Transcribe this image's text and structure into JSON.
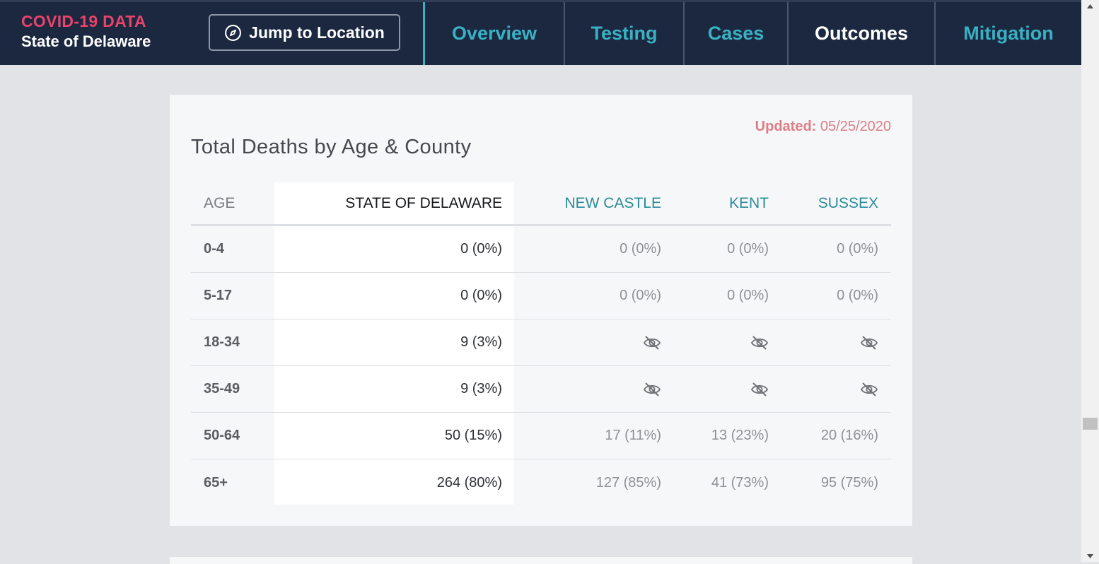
{
  "header": {
    "brand_line1": "COVID-19 DATA",
    "brand_line2": "State of Delaware",
    "jump_label": "Jump to Location",
    "jump_icon": "compass-icon",
    "tabs": [
      {
        "label": "Overview",
        "active": false
      },
      {
        "label": "Testing",
        "active": false
      },
      {
        "label": "Cases",
        "active": false
      },
      {
        "label": "Outcomes",
        "active": true
      },
      {
        "label": "Mitigation",
        "active": false
      }
    ]
  },
  "card": {
    "updated_label": "Updated:",
    "updated_date": "05/25/2020",
    "title": "Total Deaths by Age & County",
    "columns": [
      "AGE",
      "STATE OF DELAWARE",
      "NEW CASTLE",
      "KENT",
      "SUSSEX"
    ],
    "rows": [
      {
        "age": "0-4",
        "state": "0 (0%)",
        "new_castle": "0 (0%)",
        "kent": "0 (0%)",
        "sussex": "0 (0%)"
      },
      {
        "age": "5-17",
        "state": "0 (0%)",
        "new_castle": "0 (0%)",
        "kent": "0 (0%)",
        "sussex": "0 (0%)"
      },
      {
        "age": "18-34",
        "state": "9 (3%)",
        "new_castle": null,
        "kent": null,
        "sussex": null
      },
      {
        "age": "35-49",
        "state": "9 (3%)",
        "new_castle": null,
        "kent": null,
        "sussex": null
      },
      {
        "age": "50-64",
        "state": "50 (15%)",
        "new_castle": "17 (11%)",
        "kent": "13 (23%)",
        "sussex": "20 (16%)"
      },
      {
        "age": "65+",
        "state": "264 (80%)",
        "new_castle": "127 (85%)",
        "kent": "41 (73%)",
        "sussex": "95 (75%)"
      }
    ],
    "suppressed_icon": "eye-off-icon"
  },
  "colors": {
    "nav_bg": "#1b2840",
    "accent_teal": "#3ab0c3",
    "brand_red": "#e8436a",
    "updated_red": "#de7d86",
    "county_header": "#2a8c99"
  }
}
